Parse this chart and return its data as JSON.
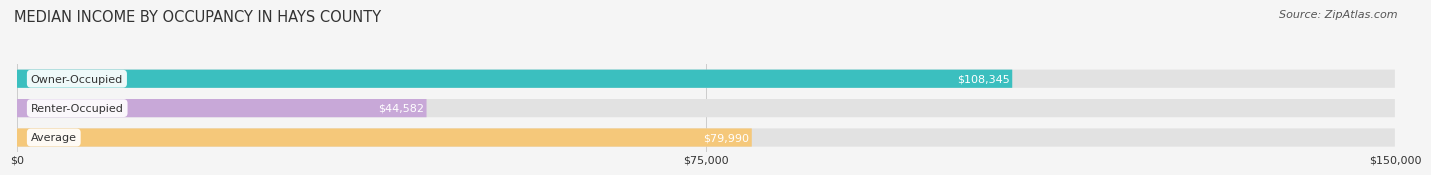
{
  "title": "MEDIAN INCOME BY OCCUPANCY IN HAYS COUNTY",
  "source": "Source: ZipAtlas.com",
  "categories": [
    "Owner-Occupied",
    "Renter-Occupied",
    "Average"
  ],
  "values": [
    108345,
    44582,
    79990
  ],
  "bar_colors": [
    "#3bbfbf",
    "#c8a8d8",
    "#f5c87a"
  ],
  "value_labels": [
    "$108,345",
    "$44,582",
    "$79,990"
  ],
  "xlim": [
    0,
    150000
  ],
  "xticks": [
    0,
    75000,
    150000
  ],
  "xtick_labels": [
    "$0",
    "$75,000",
    "$150,000"
  ],
  "title_fontsize": 10.5,
  "source_fontsize": 8,
  "label_fontsize": 8,
  "value_fontsize": 8,
  "bar_height": 0.62,
  "background_color": "#f5f5f5",
  "bar_bg_color": "#e2e2e2",
  "title_color": "#333333",
  "text_color": "#333333",
  "label_bg_color": "#ffffff",
  "value_label_color": "#555555",
  "source_color": "#555555",
  "grid_color": "#cccccc"
}
